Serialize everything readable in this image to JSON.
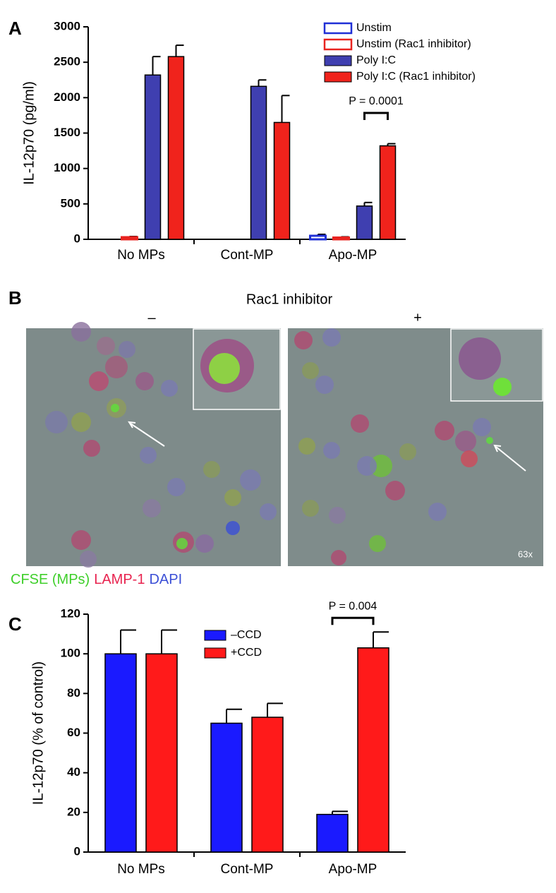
{
  "chart_data": [
    {
      "type": "bar",
      "panel_label": "A",
      "ylabel": "IL-12p70 (pg/ml)",
      "categories": [
        "No MPs",
        "Cont-MP",
        "Apo-MP"
      ],
      "series": [
        {
          "name": "Unstim",
          "color": "#1f2fd6",
          "filled": false,
          "values": [
            0,
            0,
            50
          ],
          "errors": [
            0,
            0,
            20
          ]
        },
        {
          "name": "Unstim (Rac1 inhibitor)",
          "color": "#e8231f",
          "filled": false,
          "values": [
            30,
            0,
            25
          ],
          "errors": [
            10,
            0,
            10
          ]
        },
        {
          "name": "Poly I:C",
          "color": "#3f3fb0",
          "filled": true,
          "values": [
            2320,
            2160,
            470
          ],
          "errors": [
            260,
            90,
            50
          ]
        },
        {
          "name": "Poly I:C (Rac1 inhibitor)",
          "color": "#f0231c",
          "filled": true,
          "values": [
            2580,
            1650,
            1320
          ],
          "errors": [
            160,
            380,
            30
          ]
        }
      ],
      "ylim": [
        0,
        3000
      ],
      "yticks": [
        0,
        500,
        1000,
        1500,
        2000,
        2500,
        3000
      ],
      "grid": false,
      "annotation": "P = 0.0001",
      "legend": "top-right"
    },
    {
      "type": "bar",
      "panel_label": "C",
      "ylabel": "IL-12p70 (% of control)",
      "categories": [
        "No MPs",
        "Cont-MP",
        "Apo-MP"
      ],
      "series": [
        {
          "name": "–CCD",
          "color": "#1a1aff",
          "filled": true,
          "values": [
            100,
            65,
            19
          ],
          "errors": [
            12,
            7,
            1.5
          ]
        },
        {
          "name": "+CCD",
          "color": "#ff1a1a",
          "filled": true,
          "values": [
            100,
            68,
            103
          ],
          "errors": [
            12,
            7,
            8
          ]
        }
      ],
      "ylim": [
        0,
        120
      ],
      "yticks": [
        0,
        20,
        40,
        60,
        80,
        100,
        120
      ],
      "grid": false,
      "annotation": "P = 0.004",
      "legend": "top-center"
    }
  ],
  "panel_b": {
    "label": "B",
    "title": "Rac1 inhibitor",
    "minus": "–",
    "plus": "+",
    "magnification": "63x",
    "stains": [
      {
        "text": "CFSE (MPs)",
        "color": "#3ecf2a"
      },
      {
        "text": "LAMP-1",
        "color": "#e8234f"
      },
      {
        "text": "DAPI",
        "color": "#3b4fd6"
      }
    ]
  }
}
